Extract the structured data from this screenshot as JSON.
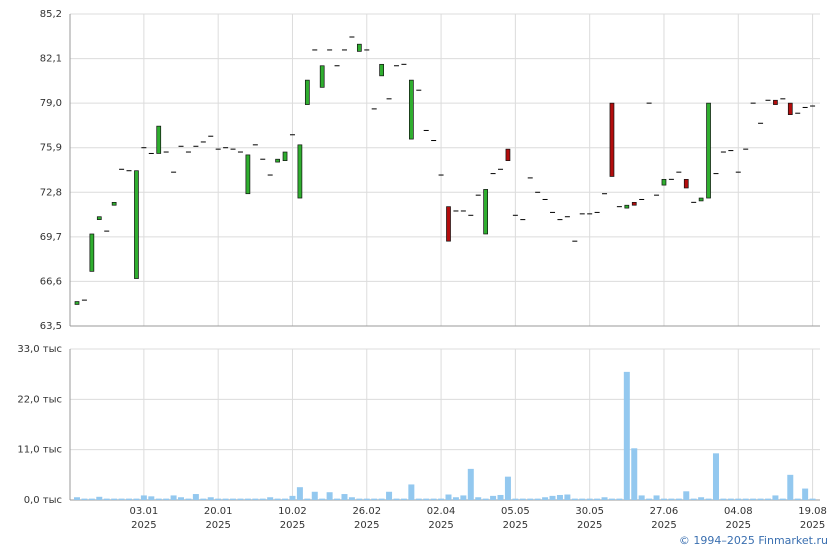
{
  "chart_data": {
    "type": "candlestick",
    "footer": "© 1994–2025 Finmarket.ru",
    "categories": [
      null,
      null,
      null,
      null,
      null,
      null,
      null,
      null,
      null,
      [
        "03.01",
        "2025"
      ],
      null,
      null,
      null,
      null,
      null,
      null,
      null,
      null,
      null,
      [
        "20.01",
        "2025"
      ],
      null,
      null,
      null,
      null,
      null,
      null,
      null,
      null,
      null,
      [
        "10.02",
        "2025"
      ],
      null,
      null,
      null,
      null,
      null,
      null,
      null,
      null,
      null,
      [
        "26.02",
        "2025"
      ],
      null,
      null,
      null,
      null,
      null,
      null,
      null,
      null,
      null,
      [
        "02.04",
        "2025"
      ],
      null,
      null,
      null,
      null,
      null,
      null,
      null,
      null,
      null,
      [
        "05.05",
        "2025"
      ],
      null,
      null,
      null,
      null,
      null,
      null,
      null,
      null,
      null,
      [
        "30.05",
        "2025"
      ],
      null,
      null,
      null,
      null,
      null,
      null,
      null,
      null,
      null,
      [
        "27.06",
        "2025"
      ],
      null,
      null,
      null,
      null,
      null,
      null,
      null,
      null,
      null,
      [
        "04.08",
        "2025"
      ],
      null,
      null,
      null,
      null,
      null,
      null,
      null,
      null,
      null,
      [
        "19.08",
        "2025"
      ]
    ],
    "open": [
      65.0,
      65.3,
      67.3,
      70.9,
      70.1,
      71.9,
      74.4,
      74.3,
      66.8,
      75.9,
      75.5,
      75.5,
      75.6,
      74.2,
      76.0,
      75.6,
      76.0,
      76.3,
      76.7,
      75.8,
      75.9,
      75.8,
      75.6,
      72.7,
      76.1,
      75.1,
      74.0,
      74.9,
      75.0,
      76.8,
      72.4,
      78.9,
      82.7,
      80.1,
      82.7,
      81.6,
      82.7,
      83.6,
      82.6,
      82.7,
      78.6,
      80.9,
      79.3,
      81.6,
      81.7,
      76.5,
      79.9,
      77.1,
      76.4,
      74.0,
      71.8,
      71.5,
      71.5,
      71.2,
      72.6,
      69.9,
      74.1,
      74.4,
      75.8,
      71.2,
      70.9,
      73.8,
      72.8,
      72.3,
      71.4,
      70.9,
      71.1,
      69.4,
      71.3,
      71.3,
      71.4,
      72.7,
      79.0,
      71.8,
      71.7,
      72.1,
      72.3,
      79.0,
      72.6,
      73.3,
      73.7,
      74.2,
      73.7,
      72.1,
      72.2,
      72.4,
      74.1,
      75.6,
      75.7,
      74.2,
      75.8,
      79.0,
      77.6,
      79.2,
      79.2,
      79.3,
      79.0,
      78.3,
      78.7,
      78.8
    ],
    "close": [
      65.2,
      65.3,
      69.9,
      71.1,
      70.1,
      72.1,
      74.4,
      74.3,
      74.3,
      75.9,
      75.5,
      77.4,
      75.6,
      74.2,
      76.0,
      75.6,
      76.0,
      76.3,
      76.7,
      75.8,
      75.9,
      75.8,
      75.6,
      75.4,
      76.1,
      75.1,
      74.0,
      75.1,
      75.6,
      76.8,
      76.1,
      80.6,
      82.7,
      81.6,
      82.7,
      81.6,
      82.7,
      83.6,
      83.1,
      82.7,
      78.6,
      81.7,
      79.3,
      81.6,
      81.7,
      80.6,
      79.9,
      77.1,
      76.4,
      74.0,
      69.4,
      71.5,
      71.5,
      71.2,
      72.6,
      73.0,
      74.1,
      74.4,
      75.0,
      71.2,
      70.9,
      73.8,
      72.8,
      72.3,
      71.4,
      70.9,
      71.1,
      69.4,
      71.3,
      71.3,
      71.4,
      72.7,
      73.9,
      71.8,
      71.9,
      71.9,
      72.3,
      79.0,
      72.6,
      73.7,
      73.7,
      74.2,
      73.1,
      72.1,
      72.4,
      79.0,
      74.1,
      75.6,
      75.7,
      74.2,
      75.8,
      79.0,
      77.6,
      79.2,
      78.9,
      79.3,
      78.2,
      78.3,
      78.7,
      78.8
    ],
    "volume": [
      0.6,
      0.3,
      0.3,
      0.7,
      0.3,
      0.3,
      0.3,
      0.3,
      0.3,
      1.0,
      0.8,
      0.3,
      0.3,
      1.0,
      0.6,
      0.3,
      1.3,
      0.3,
      0.6,
      0.3,
      0.3,
      0.3,
      0.3,
      0.3,
      0.3,
      0.3,
      0.6,
      0.3,
      0.3,
      0.9,
      2.8,
      0.3,
      1.8,
      0.3,
      1.7,
      0.3,
      1.3,
      0.6,
      0.3,
      0.3,
      0.3,
      0.3,
      1.8,
      0.3,
      0.3,
      3.4,
      0.3,
      0.3,
      0.3,
      0.3,
      1.2,
      0.6,
      1.0,
      6.8,
      0.6,
      0.3,
      0.9,
      1.1,
      5.1,
      0.3,
      0.3,
      0.3,
      0.3,
      0.6,
      0.9,
      1.1,
      1.2,
      0.3,
      0.3,
      0.3,
      0.3,
      0.6,
      0.3,
      0.3,
      28.0,
      11.3,
      1.0,
      0.3,
      1.0,
      0.3,
      0.3,
      0.3,
      1.9,
      0.3,
      0.6,
      0.3,
      10.2,
      0.3,
      0.3,
      0.3,
      0.3,
      0.3,
      0.3,
      0.3,
      1.0,
      0.3,
      5.5,
      0.3,
      2.5,
      0.3
    ],
    "up_color": "#2fae2f",
    "down_color": "#b30d0d",
    "flat_color": "#000000",
    "volume_color": "#93c8ef",
    "ylim": [
      63.5,
      85.2
    ],
    "yticks": [
      {
        "value": 63.5,
        "label": "63,5"
      },
      {
        "value": 66.6,
        "label": "66,6"
      },
      {
        "value": 69.7,
        "label": "69,7"
      },
      {
        "value": 72.8,
        "label": "72,8"
      },
      {
        "value": 75.9,
        "label": "75,9"
      },
      {
        "value": 79.0,
        "label": "79,0"
      },
      {
        "value": 82.1,
        "label": "82,1"
      },
      {
        "value": 85.2,
        "label": "85,2"
      }
    ],
    "y2lim": [
      0,
      33
    ],
    "y2ticks": [
      {
        "value": 0,
        "label": "0,0 тыс"
      },
      {
        "value": 11,
        "label": "11,0 тыс"
      },
      {
        "value": 22,
        "label": "22,0 тыс"
      },
      {
        "value": 33,
        "label": "33,0 тыс"
      }
    ],
    "grid": true
  }
}
